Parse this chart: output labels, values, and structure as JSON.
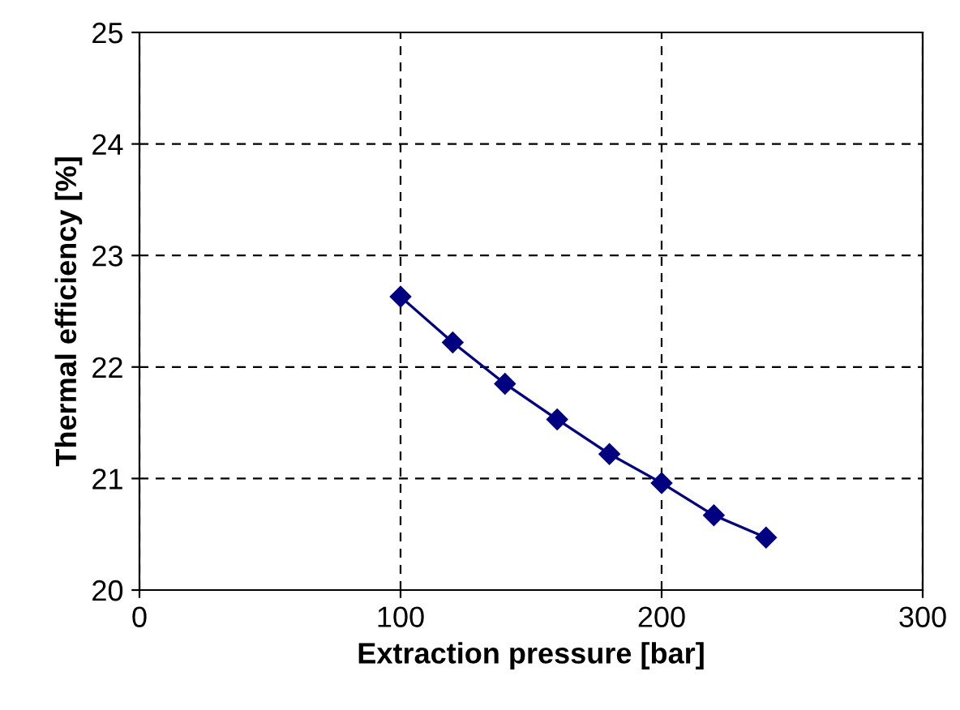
{
  "chart_data": {
    "type": "line",
    "xlabel": "Extraction pressure [bar]",
    "ylabel": "Thermal efficiency [%]",
    "x": [
      100,
      120,
      140,
      160,
      180,
      200,
      220,
      240
    ],
    "series": [
      {
        "color": "#000080",
        "values": [
          22.63,
          22.22,
          21.85,
          21.53,
          21.22,
          20.96,
          20.67,
          20.47
        ]
      }
    ],
    "xlim": [
      0,
      300
    ],
    "xticks": [
      0,
      100,
      200,
      300
    ],
    "ylim": [
      20,
      25
    ],
    "yticks": [
      20,
      21,
      22,
      23,
      24,
      25
    ],
    "grid": true,
    "marker": "diamond",
    "line_style": "solid",
    "legend": false
  }
}
